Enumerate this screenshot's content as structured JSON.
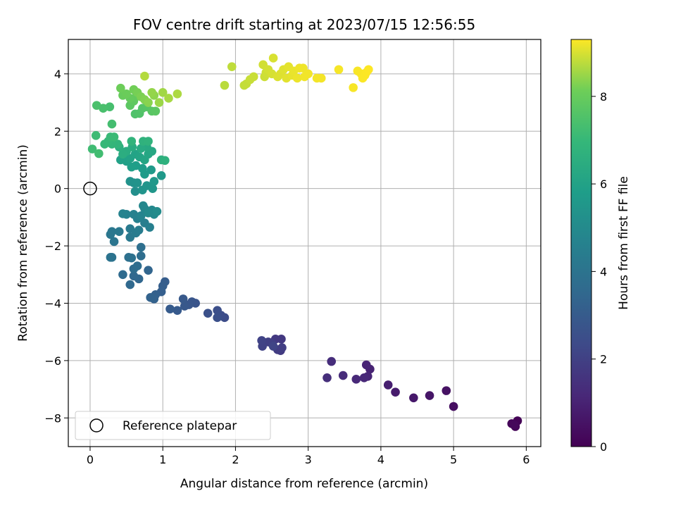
{
  "chart_data": {
    "type": "scatter",
    "title": "FOV centre drift starting at 2023/07/15 12:56:55",
    "xlabel": "Angular distance from reference (arcmin)",
    "ylabel": "Rotation from reference (arcmin)",
    "xlim": [
      -0.3,
      6.2
    ],
    "ylim": [
      -9.0,
      5.2
    ],
    "xticks": [
      0,
      1,
      2,
      3,
      4,
      5,
      6
    ],
    "yticks": [
      -8,
      -6,
      -4,
      -2,
      0,
      2,
      4
    ],
    "grid": true,
    "legend": {
      "placement": "lower-left",
      "entries": [
        "Reference platepar"
      ]
    },
    "reference_point": {
      "x": 0,
      "y": 0
    },
    "colorbar": {
      "label": "Hours from first FF file",
      "colormap": "viridis",
      "range": [
        0,
        9.3
      ],
      "ticks": [
        0,
        2,
        4,
        6,
        8
      ]
    },
    "points": [
      {
        "x": 5.88,
        "y": -8.1,
        "c": 0.05
      },
      {
        "x": 5.85,
        "y": -8.3,
        "c": 0.1
      },
      {
        "x": 5.8,
        "y": -8.2,
        "c": 0.15
      },
      {
        "x": 5.84,
        "y": -8.25,
        "c": 0.2
      },
      {
        "x": 5.0,
        "y": -7.6,
        "c": 0.4
      },
      {
        "x": 4.9,
        "y": -7.05,
        "c": 0.5
      },
      {
        "x": 4.67,
        "y": -7.22,
        "c": 0.6
      },
      {
        "x": 4.45,
        "y": -7.3,
        "c": 0.7
      },
      {
        "x": 4.2,
        "y": -7.1,
        "c": 0.8
      },
      {
        "x": 4.1,
        "y": -6.85,
        "c": 0.9
      },
      {
        "x": 3.85,
        "y": -6.3,
        "c": 1.0
      },
      {
        "x": 3.8,
        "y": -6.15,
        "c": 1.05
      },
      {
        "x": 3.82,
        "y": -6.55,
        "c": 1.1
      },
      {
        "x": 3.77,
        "y": -6.6,
        "c": 1.15
      },
      {
        "x": 3.66,
        "y": -6.65,
        "c": 1.2
      },
      {
        "x": 3.48,
        "y": -6.52,
        "c": 1.3
      },
      {
        "x": 3.32,
        "y": -6.03,
        "c": 1.35
      },
      {
        "x": 3.26,
        "y": -6.6,
        "c": 1.4
      },
      {
        "x": 2.63,
        "y": -5.25,
        "c": 1.7
      },
      {
        "x": 2.55,
        "y": -5.25,
        "c": 1.75
      },
      {
        "x": 2.62,
        "y": -5.65,
        "c": 1.8
      },
      {
        "x": 2.58,
        "y": -5.62,
        "c": 1.85
      },
      {
        "x": 2.64,
        "y": -5.55,
        "c": 1.9
      },
      {
        "x": 2.5,
        "y": -5.4,
        "c": 1.95
      },
      {
        "x": 2.45,
        "y": -5.35,
        "c": 2.0
      },
      {
        "x": 2.37,
        "y": -5.5,
        "c": 2.05
      },
      {
        "x": 2.36,
        "y": -5.3,
        "c": 2.1
      },
      {
        "x": 2.52,
        "y": -5.5,
        "c": 2.15
      },
      {
        "x": 1.85,
        "y": -4.5,
        "c": 2.4
      },
      {
        "x": 1.8,
        "y": -4.42,
        "c": 2.45
      },
      {
        "x": 1.75,
        "y": -4.25,
        "c": 2.5
      },
      {
        "x": 1.75,
        "y": -4.5,
        "c": 2.55
      },
      {
        "x": 1.62,
        "y": -4.35,
        "c": 2.6
      },
      {
        "x": 1.45,
        "y": -4.0,
        "c": 2.7
      },
      {
        "x": 1.4,
        "y": -3.95,
        "c": 2.75
      },
      {
        "x": 1.36,
        "y": -4.05,
        "c": 2.8
      },
      {
        "x": 1.3,
        "y": -4.1,
        "c": 2.85
      },
      {
        "x": 1.28,
        "y": -3.85,
        "c": 2.9
      },
      {
        "x": 1.2,
        "y": -4.25,
        "c": 2.95
      },
      {
        "x": 1.1,
        "y": -4.2,
        "c": 3.0
      },
      {
        "x": 1.03,
        "y": -3.25,
        "c": 3.05
      },
      {
        "x": 1.0,
        "y": -3.4,
        "c": 3.1
      },
      {
        "x": 0.98,
        "y": -3.6,
        "c": 3.15
      },
      {
        "x": 0.9,
        "y": -3.7,
        "c": 3.2
      },
      {
        "x": 0.88,
        "y": -3.85,
        "c": 3.25
      },
      {
        "x": 0.83,
        "y": -3.8,
        "c": 3.3
      },
      {
        "x": 0.8,
        "y": -2.85,
        "c": 3.4
      },
      {
        "x": 0.67,
        "y": -3.15,
        "c": 3.45
      },
      {
        "x": 0.6,
        "y": -3.05,
        "c": 3.5
      },
      {
        "x": 0.55,
        "y": -3.35,
        "c": 3.55
      },
      {
        "x": 0.45,
        "y": -3.0,
        "c": 3.6
      },
      {
        "x": 0.6,
        "y": -2.8,
        "c": 3.65
      },
      {
        "x": 0.65,
        "y": -2.7,
        "c": 3.7
      },
      {
        "x": 0.7,
        "y": -2.35,
        "c": 3.75
      },
      {
        "x": 0.7,
        "y": -2.05,
        "c": 3.8
      },
      {
        "x": 0.53,
        "y": -2.4,
        "c": 3.85
      },
      {
        "x": 0.57,
        "y": -2.42,
        "c": 3.9
      },
      {
        "x": 0.3,
        "y": -2.4,
        "c": 3.95
      },
      {
        "x": 0.28,
        "y": -2.4,
        "c": 4.0
      },
      {
        "x": 0.33,
        "y": -1.85,
        "c": 4.05
      },
      {
        "x": 0.28,
        "y": -1.6,
        "c": 4.1
      },
      {
        "x": 0.3,
        "y": -1.5,
        "c": 4.15
      },
      {
        "x": 0.4,
        "y": -1.5,
        "c": 4.2
      },
      {
        "x": 0.55,
        "y": -1.7,
        "c": 4.25
      },
      {
        "x": 0.55,
        "y": -1.4,
        "c": 4.3
      },
      {
        "x": 0.63,
        "y": -1.55,
        "c": 4.35
      },
      {
        "x": 0.67,
        "y": -1.45,
        "c": 4.4
      },
      {
        "x": 0.75,
        "y": -1.2,
        "c": 4.45
      },
      {
        "x": 0.82,
        "y": -1.35,
        "c": 4.5
      },
      {
        "x": 0.65,
        "y": -1.05,
        "c": 4.55
      },
      {
        "x": 0.6,
        "y": -0.9,
        "c": 4.6
      },
      {
        "x": 0.5,
        "y": -0.9,
        "c": 4.65
      },
      {
        "x": 0.45,
        "y": -0.88,
        "c": 4.7
      },
      {
        "x": 0.7,
        "y": -0.95,
        "c": 4.75
      },
      {
        "x": 0.75,
        "y": -0.7,
        "c": 4.8
      },
      {
        "x": 0.73,
        "y": -0.6,
        "c": 4.85
      },
      {
        "x": 0.85,
        "y": -0.75,
        "c": 4.9
      },
      {
        "x": 0.88,
        "y": -0.9,
        "c": 4.95
      },
      {
        "x": 0.8,
        "y": -0.85,
        "c": 5.0
      },
      {
        "x": 0.92,
        "y": -0.8,
        "c": 5.05
      },
      {
        "x": 0.62,
        "y": -0.1,
        "c": 5.2
      },
      {
        "x": 0.6,
        "y": 0.2,
        "c": 5.25
      },
      {
        "x": 0.55,
        "y": 0.25,
        "c": 5.3
      },
      {
        "x": 0.65,
        "y": 0.2,
        "c": 5.35
      },
      {
        "x": 0.72,
        "y": -0.05,
        "c": 5.4
      },
      {
        "x": 0.78,
        "y": 0.1,
        "c": 5.45
      },
      {
        "x": 0.86,
        "y": 0.0,
        "c": 5.5
      },
      {
        "x": 0.88,
        "y": 0.25,
        "c": 5.55
      },
      {
        "x": 0.98,
        "y": 0.45,
        "c": 5.6
      },
      {
        "x": 0.84,
        "y": 0.65,
        "c": 5.65
      },
      {
        "x": 0.75,
        "y": 0.5,
        "c": 5.7
      },
      {
        "x": 0.72,
        "y": 0.7,
        "c": 5.75
      },
      {
        "x": 0.63,
        "y": 0.8,
        "c": 5.8
      },
      {
        "x": 0.57,
        "y": 0.75,
        "c": 5.85
      },
      {
        "x": 0.5,
        "y": 0.95,
        "c": 5.9
      },
      {
        "x": 0.42,
        "y": 1.0,
        "c": 5.95
      },
      {
        "x": 0.55,
        "y": 1.05,
        "c": 6.0
      },
      {
        "x": 0.62,
        "y": 1.2,
        "c": 6.05
      },
      {
        "x": 0.68,
        "y": 1.1,
        "c": 6.1
      },
      {
        "x": 0.75,
        "y": 1.0,
        "c": 6.15
      },
      {
        "x": 0.8,
        "y": 1.2,
        "c": 6.2
      },
      {
        "x": 0.85,
        "y": 1.3,
        "c": 6.25
      },
      {
        "x": 0.78,
        "y": 1.45,
        "c": 6.3
      },
      {
        "x": 0.7,
        "y": 1.4,
        "c": 6.35
      },
      {
        "x": 0.58,
        "y": 1.45,
        "c": 6.4
      },
      {
        "x": 0.5,
        "y": 1.3,
        "c": 6.45
      },
      {
        "x": 0.45,
        "y": 1.2,
        "c": 6.5
      },
      {
        "x": 0.4,
        "y": 1.45,
        "c": 6.55
      },
      {
        "x": 0.98,
        "y": 1.0,
        "c": 6.6
      },
      {
        "x": 1.03,
        "y": 0.98,
        "c": 6.65
      },
      {
        "x": 0.73,
        "y": 1.65,
        "c": 6.7
      },
      {
        "x": 0.8,
        "y": 1.65,
        "c": 6.75
      },
      {
        "x": 0.57,
        "y": 1.65,
        "c": 6.8
      },
      {
        "x": 0.38,
        "y": 1.55,
        "c": 6.85
      },
      {
        "x": 0.3,
        "y": 1.55,
        "c": 6.9
      },
      {
        "x": 0.25,
        "y": 1.65,
        "c": 6.95
      },
      {
        "x": 0.2,
        "y": 1.55,
        "c": 7.0
      },
      {
        "x": 0.28,
        "y": 1.8,
        "c": 7.05
      },
      {
        "x": 0.33,
        "y": 1.8,
        "c": 7.1
      },
      {
        "x": 0.08,
        "y": 1.85,
        "c": 7.15
      },
      {
        "x": 0.03,
        "y": 1.38,
        "c": 7.2
      },
      {
        "x": 0.12,
        "y": 1.22,
        "c": 7.25
      },
      {
        "x": 0.3,
        "y": 2.25,
        "c": 7.3
      },
      {
        "x": 0.27,
        "y": 2.85,
        "c": 7.35
      },
      {
        "x": 0.18,
        "y": 2.8,
        "c": 7.4
      },
      {
        "x": 0.09,
        "y": 2.9,
        "c": 7.45
      },
      {
        "x": 0.62,
        "y": 2.6,
        "c": 7.5
      },
      {
        "x": 0.68,
        "y": 2.62,
        "c": 7.55
      },
      {
        "x": 0.72,
        "y": 2.8,
        "c": 7.6
      },
      {
        "x": 0.78,
        "y": 2.85,
        "c": 7.65
      },
      {
        "x": 0.85,
        "y": 2.7,
        "c": 7.7
      },
      {
        "x": 0.9,
        "y": 2.7,
        "c": 7.75
      },
      {
        "x": 0.55,
        "y": 2.9,
        "c": 7.8
      },
      {
        "x": 0.6,
        "y": 3.05,
        "c": 7.85
      },
      {
        "x": 0.63,
        "y": 3.2,
        "c": 7.9
      },
      {
        "x": 0.55,
        "y": 3.15,
        "c": 7.95
      },
      {
        "x": 0.45,
        "y": 3.25,
        "c": 8.0
      },
      {
        "x": 0.5,
        "y": 3.3,
        "c": 8.05
      },
      {
        "x": 0.42,
        "y": 3.5,
        "c": 8.1
      },
      {
        "x": 0.6,
        "y": 3.45,
        "c": 8.15
      },
      {
        "x": 0.65,
        "y": 3.35,
        "c": 8.2
      },
      {
        "x": 0.7,
        "y": 3.2,
        "c": 8.25
      },
      {
        "x": 0.75,
        "y": 3.1,
        "c": 8.3
      },
      {
        "x": 0.8,
        "y": 3.0,
        "c": 8.35
      },
      {
        "x": 0.88,
        "y": 3.25,
        "c": 8.4
      },
      {
        "x": 0.85,
        "y": 3.35,
        "c": 8.45
      },
      {
        "x": 0.95,
        "y": 3.0,
        "c": 8.5
      },
      {
        "x": 1.0,
        "y": 3.35,
        "c": 8.55
      },
      {
        "x": 1.08,
        "y": 3.15,
        "c": 8.6
      },
      {
        "x": 1.2,
        "y": 3.3,
        "c": 8.65
      },
      {
        "x": 0.75,
        "y": 3.92,
        "c": 8.7
      },
      {
        "x": 1.85,
        "y": 3.6,
        "c": 8.75
      },
      {
        "x": 1.95,
        "y": 4.25,
        "c": 8.8
      },
      {
        "x": 2.12,
        "y": 3.6,
        "c": 8.82
      },
      {
        "x": 2.15,
        "y": 3.65,
        "c": 8.84
      },
      {
        "x": 2.2,
        "y": 3.8,
        "c": 8.86
      },
      {
        "x": 2.25,
        "y": 3.9,
        "c": 8.88
      },
      {
        "x": 2.4,
        "y": 3.9,
        "c": 8.9
      },
      {
        "x": 2.42,
        "y": 4.05,
        "c": 8.92
      },
      {
        "x": 2.38,
        "y": 4.32,
        "c": 8.94
      },
      {
        "x": 2.45,
        "y": 4.15,
        "c": 8.96
      },
      {
        "x": 2.5,
        "y": 4.0,
        "c": 8.98
      },
      {
        "x": 2.52,
        "y": 4.55,
        "c": 9.0
      },
      {
        "x": 2.58,
        "y": 3.9,
        "c": 9.02
      },
      {
        "x": 2.62,
        "y": 4.0,
        "c": 9.04
      },
      {
        "x": 2.66,
        "y": 4.15,
        "c": 9.06
      },
      {
        "x": 2.7,
        "y": 3.85,
        "c": 9.08
      },
      {
        "x": 2.73,
        "y": 4.25,
        "c": 9.1
      },
      {
        "x": 2.78,
        "y": 3.95,
        "c": 9.12
      },
      {
        "x": 2.8,
        "y": 4.1,
        "c": 9.14
      },
      {
        "x": 2.85,
        "y": 3.85,
        "c": 9.16
      },
      {
        "x": 2.88,
        "y": 4.2,
        "c": 9.18
      },
      {
        "x": 2.93,
        "y": 4.2,
        "c": 9.19
      },
      {
        "x": 2.95,
        "y": 3.9,
        "c": 9.2
      },
      {
        "x": 3.0,
        "y": 4.0,
        "c": 9.21
      },
      {
        "x": 3.12,
        "y": 3.85,
        "c": 9.22
      },
      {
        "x": 3.18,
        "y": 3.85,
        "c": 9.23
      },
      {
        "x": 3.42,
        "y": 4.15,
        "c": 9.24
      },
      {
        "x": 3.62,
        "y": 3.52,
        "c": 9.25
      },
      {
        "x": 3.68,
        "y": 4.1,
        "c": 9.26
      },
      {
        "x": 3.73,
        "y": 4.0,
        "c": 9.27
      },
      {
        "x": 3.75,
        "y": 3.85,
        "c": 9.28
      },
      {
        "x": 3.78,
        "y": 3.95,
        "c": 9.28
      },
      {
        "x": 3.8,
        "y": 4.05,
        "c": 9.29
      },
      {
        "x": 3.83,
        "y": 4.15,
        "c": 9.3
      }
    ]
  }
}
